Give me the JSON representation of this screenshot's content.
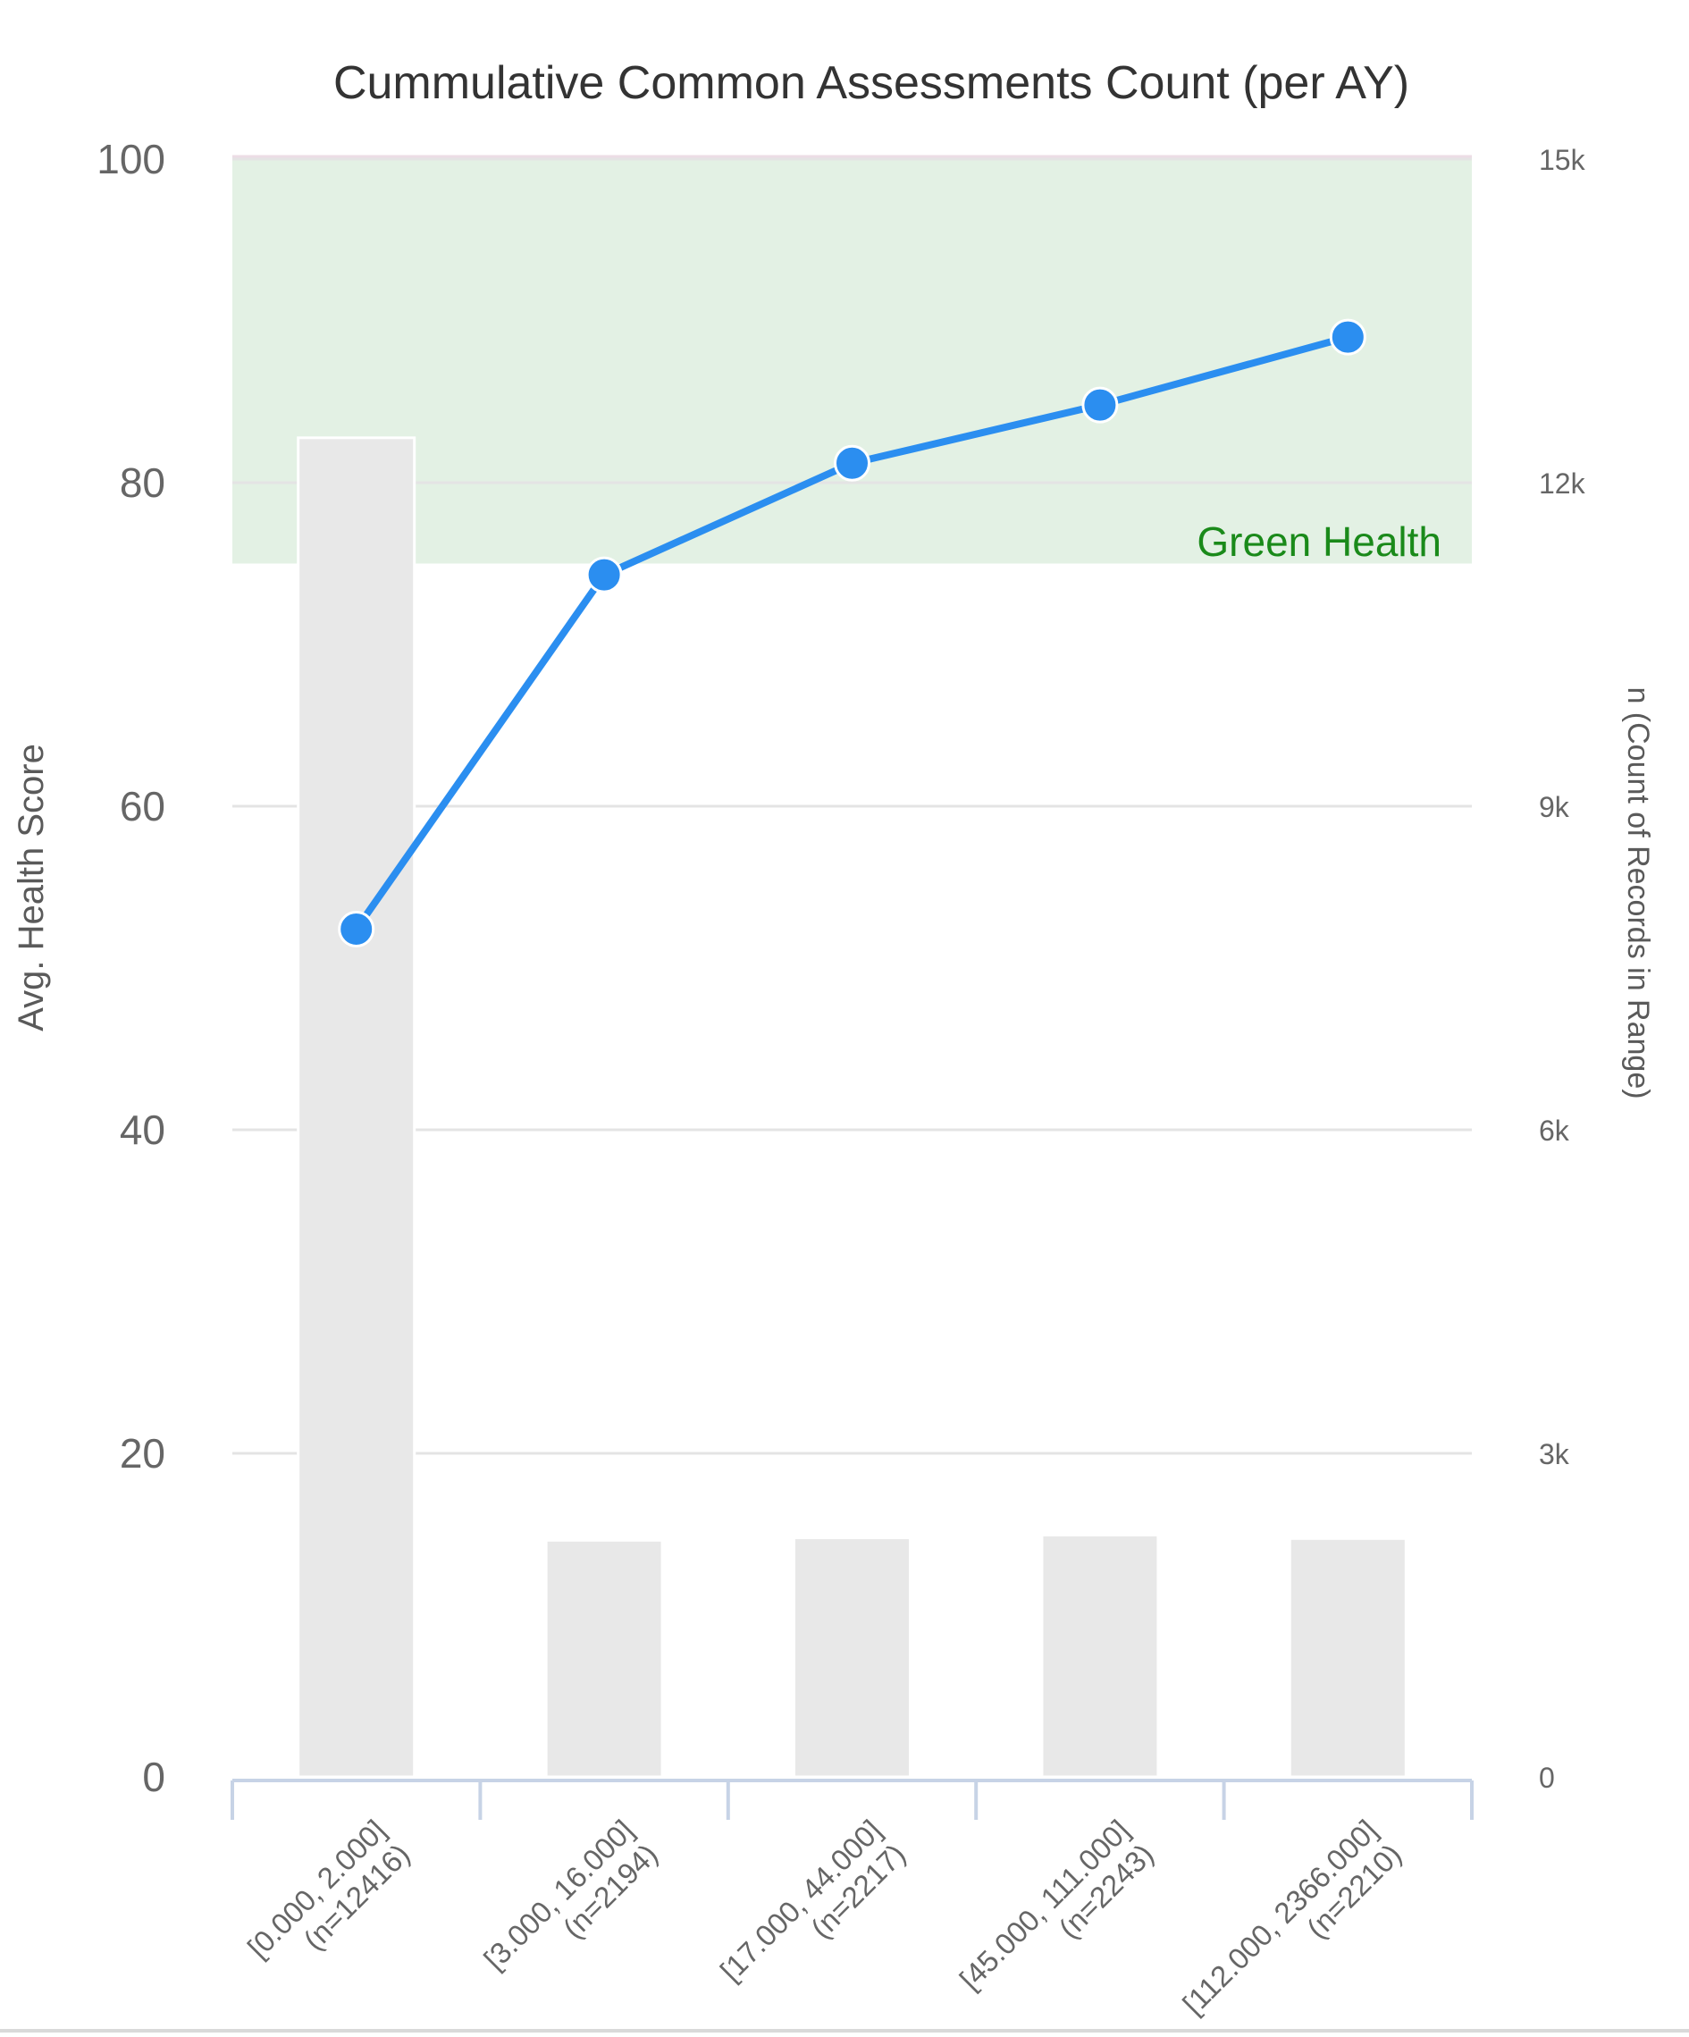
{
  "chart_data": {
    "type": "bar+line",
    "title": "Cummulative Common Assessments Count (per AY)",
    "categories": [
      [
        "[0.000, 2.000]",
        "(n=12416)"
      ],
      [
        "[3.000, 16.000]",
        "(n=2194)"
      ],
      [
        "[17.000, 44.000]",
        "(n=2217)"
      ],
      [
        "[45.000, 111.000]",
        "(n=2243)"
      ],
      [
        "[112.000, 2366.000]",
        "(n=2210)"
      ]
    ],
    "bars": {
      "axis": "right",
      "values": [
        12416,
        2194,
        2217,
        2243,
        2210
      ],
      "color": "#e8e8e8"
    },
    "line": {
      "axis": "left",
      "values": [
        52.4,
        74.3,
        81.2,
        84.8,
        89.0
      ],
      "color": "#2b8ef0"
    },
    "y_left": {
      "label": "Avg. Health Score",
      "range": [
        0,
        100
      ],
      "ticks": [
        0,
        20,
        40,
        60,
        80,
        100
      ],
      "tick_labels": [
        "0",
        "20",
        "40",
        "60",
        "80",
        "100"
      ]
    },
    "y_right": {
      "label": "n (Count of Records in Range)",
      "range": [
        0,
        15000
      ],
      "ticks": [
        0,
        3000,
        6000,
        9000,
        12000,
        15000
      ],
      "tick_labels": [
        "0",
        "3k",
        "6k",
        "9k",
        "12k",
        "15k"
      ]
    },
    "band": {
      "label": "Green Health",
      "from": 75,
      "to": 100,
      "fill": "#e3f1e4",
      "label_color": "#1a8a1a"
    },
    "grid": true,
    "legend": "none"
  }
}
